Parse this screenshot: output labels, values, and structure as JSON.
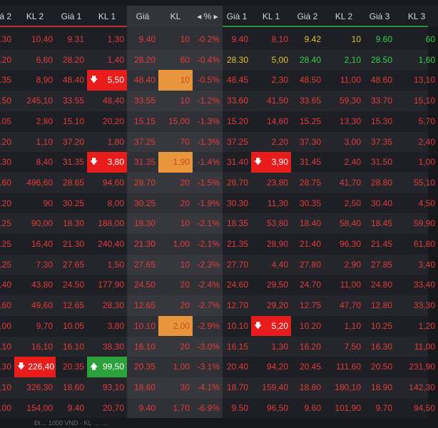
{
  "colors": {
    "down": "#e23b3b",
    "ref": "#e0c320",
    "up": "#2fd14a",
    "ceiling_cell": "#e91c1c",
    "floor_up_cell": "#2aa13b",
    "match_cell": "#e8963e"
  },
  "headers": {
    "kl2": "KL 2",
    "gia1": "Giá 1",
    "kl1": "KL 1",
    "gia": "Giá",
    "kl": "KL",
    "pct": "◂ % ▸",
    "gia1b": "Giá 1",
    "kl1b": "KL 1",
    "gia2": "Giá 2",
    "kl2b": "KL 2",
    "gia3": "Giá 3",
    "kl3": "KL 3",
    "left_cut": "á 2"
  },
  "rows": [
    {
      "g2": ".30",
      "kl2": "10,40",
      "g1": "9.31",
      "kl1": "1,30",
      "price": "9.40",
      "vol": "10",
      "pct": "-0.2%",
      "sg1": "9.40",
      "skl1": "8,10",
      "sg2": "9.42",
      "skl2": "10",
      "sg3": "9.60",
      "skl3": "60"
    },
    {
      "g2": ".20",
      "kl2": "6,60",
      "g1": "28.20",
      "kl1": "1,40",
      "price": "28.20",
      "vol": "60",
      "pct": "-0.4%",
      "sg1": "28.30",
      "skl1": "5,00",
      "sg2": "28.40",
      "skl2": "2,10",
      "sg3": "28.50",
      "skl3": "1,60"
    },
    {
      "g2": ".35",
      "kl2": "8,90",
      "g1": "48.40",
      "kl1": "5,50",
      "price": "48.40",
      "vol": "10",
      "pct": "-0.5%",
      "sg1": "48.45",
      "skl1": "2,30",
      "sg2": "48.50",
      "skl2": "11,00",
      "sg3": "48.60",
      "skl3": "13,10"
    },
    {
      "g2": ".50",
      "kl2": "245,10",
      "g1": "33.55",
      "kl1": "48,40",
      "price": "33.55",
      "vol": "10",
      "pct": "-1.2%",
      "sg1": "33.60",
      "skl1": "41,50",
      "sg2": "33.65",
      "skl2": "59,30",
      "sg3": "33.70",
      "skl3": "15,10"
    },
    {
      "g2": ".05",
      "kl2": "2,80",
      "g1": "15.10",
      "kl1": "20,20",
      "price": "15.15",
      "vol": "15,00",
      "pct": "-1.3%",
      "sg1": "15.20",
      "skl1": "14,60",
      "sg2": "15.25",
      "skl2": "13,30",
      "sg3": "15.30",
      "skl3": "5,70"
    },
    {
      "g2": ".20",
      "kl2": "1,10",
      "g1": "37.20",
      "kl1": "1,80",
      "price": "37.25",
      "vol": "70",
      "pct": "-1.3%",
      "sg1": "37.25",
      "skl1": "2,20",
      "sg2": "37.30",
      "skl2": "3,00",
      "sg3": "37.35",
      "skl3": "2,40"
    },
    {
      "g2": ".30",
      "kl2": "8,40",
      "g1": "31.35",
      "kl1": "3,80",
      "price": "31.35",
      "vol": "1,90",
      "pct": "-1.4%",
      "sg1": "31.40",
      "skl1": "3,90",
      "sg2": "31.45",
      "skl2": "2,40",
      "sg3": "31.50",
      "skl3": "1,00"
    },
    {
      "g2": ".60",
      "kl2": "496,60",
      "g1": "28.65",
      "kl1": "94,60",
      "price": "28.70",
      "vol": "20",
      "pct": "-1.5%",
      "sg1": "28.70",
      "skl1": "23,80",
      "sg2": "28.75",
      "skl2": "41,70",
      "sg3": "28.80",
      "skl3": "55,10"
    },
    {
      "g2": ".20",
      "kl2": "90",
      "g1": "30.25",
      "kl1": "8,00",
      "price": "30.25",
      "vol": "20",
      "pct": "-1.9%",
      "sg1": "30.30",
      "skl1": "11,30",
      "sg2": "30.35",
      "skl2": "2,50",
      "sg3": "30.40",
      "skl3": "4,50"
    },
    {
      "g2": ".25",
      "kl2": "90,00",
      "g1": "18.30",
      "kl1": "188,00",
      "price": "18.30",
      "vol": "10",
      "pct": "-2.1%",
      "sg1": "18.35",
      "skl1": "53,80",
      "sg2": "18.40",
      "skl2": "58,40",
      "sg3": "18.45",
      "skl3": "59,90"
    },
    {
      "g2": ".25",
      "kl2": "16,40",
      "g1": "21.30",
      "kl1": "240,40",
      "price": "21.30",
      "vol": "1,00",
      "pct": "-2.1%",
      "sg1": "21.35",
      "skl1": "28,90",
      "sg2": "21.40",
      "skl2": "96,30",
      "sg3": "21.45",
      "skl3": "61,80"
    },
    {
      "g2": ".25",
      "kl2": "7,30",
      "g1": "27.65",
      "kl1": "1,50",
      "price": "27.65",
      "vol": "10",
      "pct": "-2.3%",
      "sg1": "27.70",
      "skl1": "4,40",
      "sg2": "27.80",
      "skl2": "2,90",
      "sg3": "27.85",
      "skl3": "3,40"
    },
    {
      "g2": ".40",
      "kl2": "43,80",
      "g1": "24.50",
      "kl1": "177,90",
      "price": "24.50",
      "vol": "20",
      "pct": "-2.4%",
      "sg1": "24.60",
      "skl1": "29,50",
      "sg2": "24.70",
      "skl2": "11,00",
      "sg3": "24.80",
      "skl3": "33,40"
    },
    {
      "g2": ".60",
      "kl2": "49,60",
      "g1": "12.65",
      "kl1": "28,30",
      "price": "12.65",
      "vol": "20",
      "pct": "-2.7%",
      "sg1": "12.70",
      "skl1": "29,20",
      "sg2": "12.75",
      "skl2": "47,70",
      "sg3": "12.80",
      "skl3": "33,30"
    },
    {
      "g2": ".00",
      "kl2": "9,70",
      "g1": "10.05",
      "kl1": "3,80",
      "price": "10.10",
      "vol": "2,00",
      "pct": "-2.9%",
      "sg1": "10.10",
      "skl1": "5,20",
      "sg2": "10.20",
      "skl2": "1,10",
      "sg3": "10.25",
      "skl3": "1,20"
    },
    {
      "g2": ".10",
      "kl2": "16,10",
      "g1": "16.10",
      "kl1": "38,30",
      "price": "16.10",
      "vol": "20",
      "pct": "-3.0%",
      "sg1": "16.15",
      "skl1": "1,30",
      "sg2": "16.20",
      "skl2": "7,50",
      "sg3": "16.30",
      "skl3": "11,00"
    },
    {
      "g2": ".30",
      "kl2": "226,40",
      "g1": "20.35",
      "kl1": "99,50",
      "price": "20.35",
      "vol": "1,00",
      "pct": "-3.1%",
      "sg1": "20.40",
      "skl1": "94,20",
      "sg2": "20.45",
      "skl2": "111,60",
      "sg3": "20.50",
      "skl3": "231,90"
    },
    {
      "g2": ".10",
      "kl2": "326,30",
      "g1": "18.60",
      "kl1": "93,10",
      "price": "18.60",
      "vol": "30",
      "pct": "-4.1%",
      "sg1": "18.70",
      "skl1": "159,40",
      "sg2": "18.80",
      "skl2": "180,10",
      "sg3": "18.90",
      "skl3": "142,30"
    },
    {
      "g2": ".00",
      "kl2": "154,00",
      "g1": "9.40",
      "kl1": "20,70",
      "price": "9.40",
      "vol": "1,70",
      "pct": "-6.9%",
      "sg1": "9.50",
      "skl1": "96,50",
      "sg2": "9.60",
      "skl2": "101,90",
      "sg3": "9.70",
      "skl3": "94,50"
    }
  ],
  "footer": "Đi… 1000 VND · KL …  …"
}
